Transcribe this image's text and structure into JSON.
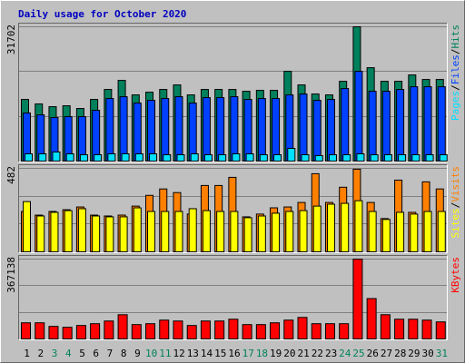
{
  "title": "Daily usage for October 2020",
  "legend_separator": "/",
  "chart_data": [
    {
      "type": "bar",
      "ylim": [
        0,
        31702
      ],
      "yticks": [
        31702
      ],
      "series": [
        {
          "name": "Hits",
          "color": "#00805c",
          "values": [
            14552,
            13482,
            12840,
            13054,
            12412,
            14552,
            16906,
            19046,
            15622,
            16264,
            16906,
            17976,
            15622,
            16906,
            16906,
            16906,
            16478,
            16692,
            16692,
            21186,
            17976,
            15836,
            15622,
            18832,
            31702,
            22042,
            18832,
            18832,
            20330,
            19260,
            19260
          ]
        },
        {
          "name": "Files",
          "color": "#0040ff",
          "values": [
            11342,
            10914,
            10272,
            10486,
            10486,
            11984,
            14766,
            15194,
            13696,
            14338,
            14766,
            15194,
            13696,
            14980,
            14980,
            15194,
            14552,
            14766,
            14766,
            15622,
            15836,
            14338,
            14552,
            17120,
            21186,
            16478,
            16478,
            16906,
            17548,
            17548,
            17548
          ]
        },
        {
          "name": "Pages",
          "color": "#00e0ff",
          "values": [
            1712,
            1712,
            2140,
            1712,
            1498,
            1498,
            1712,
            1712,
            1712,
            1712,
            1498,
            1498,
            1712,
            1498,
            1498,
            1712,
            1712,
            1498,
            1498,
            2996,
            1498,
            1284,
            1498,
            1498,
            1712,
            1498,
            1498,
            1498,
            1498,
            1498,
            1498
          ]
        }
      ]
    },
    {
      "type": "bar",
      "ylim": [
        0,
        482
      ],
      "yticks": [
        482
      ],
      "series": [
        {
          "name": "Visits",
          "color": "#ff8000",
          "values": [
            233,
            212,
            233,
            243,
            259,
            212,
            207,
            212,
            264,
            326,
            363,
            342,
            218,
            383,
            383,
            430,
            202,
            218,
            254,
            259,
            285,
            451,
            285,
            373,
            477,
            285,
            192,
            414,
            228,
            404,
            363
          ]
        },
        {
          "name": "Sites",
          "color": "#ffff00",
          "values": [
            290,
            207,
            228,
            238,
            249,
            207,
            202,
            202,
            254,
            233,
            233,
            233,
            249,
            238,
            233,
            233,
            197,
            207,
            223,
            233,
            238,
            264,
            275,
            280,
            295,
            233,
            187,
            228,
            218,
            233,
            233
          ]
        }
      ]
    },
    {
      "type": "bar",
      "ylim": [
        0,
        367138
      ],
      "yticks": [
        367138
      ],
      "categories": [
        "1",
        "2",
        "3",
        "4",
        "5",
        "6",
        "7",
        "8",
        "9",
        "10",
        "11",
        "12",
        "13",
        "14",
        "15",
        "16",
        "17",
        "18",
        "19",
        "20",
        "21",
        "22",
        "23",
        "24",
        "25",
        "26",
        "27",
        "28",
        "29",
        "30",
        "31"
      ],
      "category_colors": [
        "#000000",
        "#000000",
        "#00805c",
        "#00805c",
        "#000000",
        "#000000",
        "#000000",
        "#000000",
        "#000000",
        "#00805c",
        "#00805c",
        "#000000",
        "#000000",
        "#000000",
        "#000000",
        "#000000",
        "#00805c",
        "#00805c",
        "#000000",
        "#000000",
        "#000000",
        "#000000",
        "#000000",
        "#00805c",
        "#00805c",
        "#000000",
        "#000000",
        "#000000",
        "#000000",
        "#000000",
        "#00805c"
      ],
      "series": [
        {
          "name": "KBytes",
          "color": "#ff0000",
          "values": [
            74250,
            74250,
            57750,
            53625,
            61875,
            70125,
            82500,
            111375,
            66000,
            70125,
            86625,
            82500,
            61875,
            82500,
            82500,
            90750,
            66000,
            66000,
            74250,
            86625,
            99000,
            70125,
            70125,
            70125,
            367138,
            185625,
            111375,
            90750,
            90750,
            86625,
            78375
          ]
        }
      ]
    }
  ]
}
